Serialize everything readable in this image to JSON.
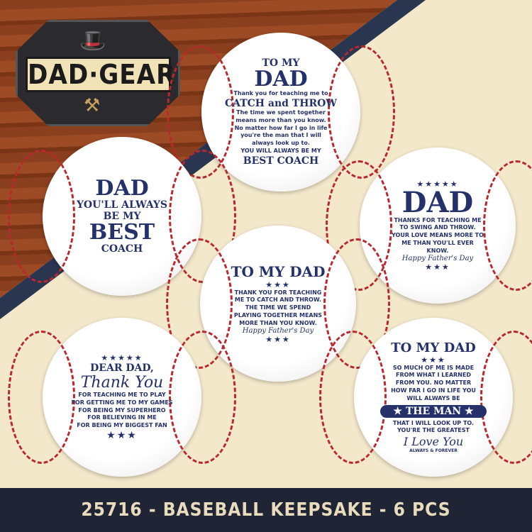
{
  "logo": {
    "text": "DAD·GEAR",
    "hat_icon": "fedora-hat-icon",
    "tools_icon": "hammer-wrench-icon"
  },
  "balls": [
    {
      "title_a": "TO MY",
      "title_b": "DAD",
      "line1": "Thank you for teaching me to",
      "line2": "CATCH and THROW",
      "body": "The time we spent together means more than you know. No matter how far I go in life you're the man that I will always look up to.",
      "line3": "YOU WILL ALWAYS BE MY",
      "line4": "BEST COACH"
    },
    {
      "title": "DAD",
      "line1": "YOU'LL ALWAYS",
      "line2": "BE MY",
      "line3": "BEST",
      "line4": "COACH"
    },
    {
      "stars": "★★★★★",
      "title": "DAD",
      "body": "THANKS FOR TEACHING ME TO SWING AND THROW. YOUR LOVE MEANS MORE TO ME THAN YOU'LL EVER KNOW.",
      "sign": "Happy Father's Day",
      "stars2": "★★★"
    },
    {
      "title": "TO MY DAD",
      "stars": "★★★",
      "body": "THANK YOU FOR TEACHING ME TO CATCH AND THROW. THE TIME WE SPEND PLAYING TOGETHER MEANS MORE THAN YOU KNOW.",
      "sign": "Happy Father's Day",
      "stars2": "★★★"
    },
    {
      "stars": "★★★★★",
      "title": "DEAR DAD,",
      "script": "Thank You",
      "body": "FOR TEACHING ME TO PLAY\nFOR GETTING ME TO MY GAMES\nFOR BEING MY SUPERHERO\nFOR BELIEVING IN ME\nFOR BEING MY BIGGEST FAN",
      "stars2": "★★★"
    },
    {
      "title": "TO MY DAD",
      "stars": "★★★",
      "body": "SO MUCH OF ME IS MADE FROM WHAT I LEARNED FROM YOU. NO MATTER HOW FAR I GO IN LIFE YOU WILL ALWAYS BE",
      "pill": "★ THE MAN ★",
      "body2": "THAT I WILL LOOK UP TO. YOU'RE THE GREATEST",
      "script": "I Love You",
      "sign": "ALWAYS & FOREVER"
    }
  ],
  "footer": {
    "text": "25716 - BASEBALL KEEPSAKE - 6 PCS"
  }
}
